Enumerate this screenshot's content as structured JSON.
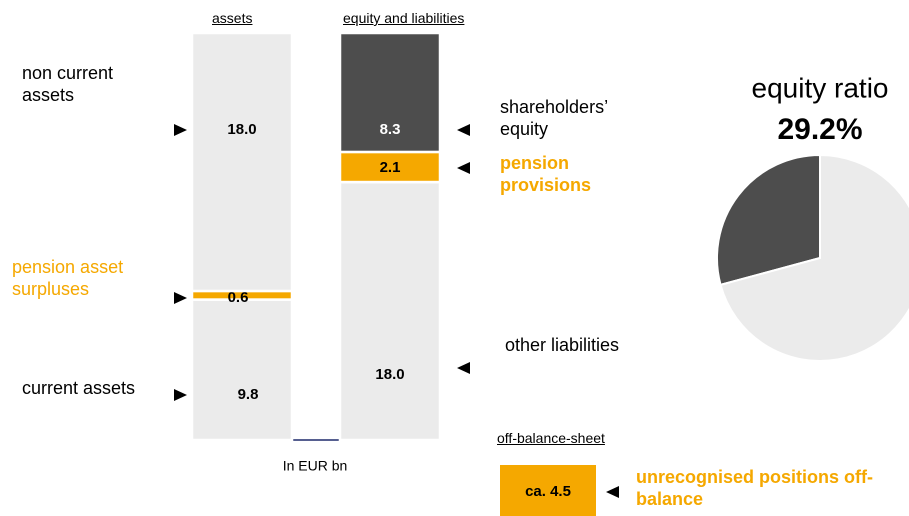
{
  "chart_data": [
    {
      "type": "stacked_bar",
      "categories": [
        "assets",
        "equity and liabilities"
      ],
      "x_label": "In EUR bn",
      "series": [
        {
          "name": "current assets",
          "color": "#ebebeb",
          "values": [
            9.8,
            null
          ],
          "value_labels": [
            "9.8",
            null
          ]
        },
        {
          "name": "pension asset surpluses",
          "color": "#f5a800",
          "values": [
            0.6,
            null
          ],
          "value_labels": [
            "0.6",
            null
          ]
        },
        {
          "name": "non current assets",
          "color": "#ebebeb",
          "values": [
            18.0,
            null
          ],
          "value_labels": [
            "18.0",
            null
          ]
        },
        {
          "name": "other liabilities",
          "color": "#ebebeb",
          "values": [
            null,
            18.0
          ],
          "value_labels": [
            null,
            "18.0"
          ]
        },
        {
          "name": "pension provisions",
          "color": "#f5a800",
          "values": [
            null,
            2.1
          ],
          "value_labels": [
            null,
            "2.1"
          ]
        },
        {
          "name": "shareholders’ equity",
          "color": "#4d4d4d",
          "values": [
            null,
            8.3
          ],
          "value_labels": [
            null,
            "8.3"
          ]
        }
      ],
      "off_balance": {
        "title": "off-balance-sheet",
        "value": 4.5,
        "value_label": "ca. 4.5",
        "label": "unrecognised positions off-balance",
        "color": "#f5a800"
      }
    },
    {
      "type": "pie",
      "title": "equity ratio",
      "values": [
        29.2,
        70.8
      ],
      "value_labels": [
        "29.2%",
        null
      ],
      "colors": [
        "#4d4d4d",
        "#ebebeb"
      ]
    }
  ]
}
